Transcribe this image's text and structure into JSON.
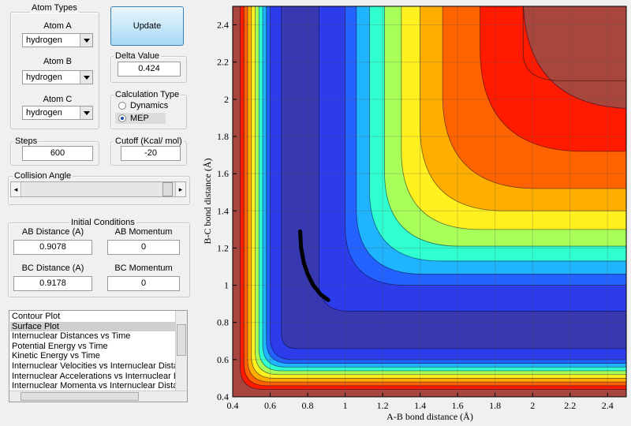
{
  "panels": {
    "atom_types": {
      "title": "Atom Types",
      "atoms": [
        {
          "label": "Atom A",
          "value": "hydrogen"
        },
        {
          "label": "Atom B",
          "value": "hydrogen"
        },
        {
          "label": "Atom C",
          "value": "hydrogen"
        }
      ]
    },
    "update_button": "Update",
    "delta_value": {
      "title": "Delta Value",
      "value": "0.424"
    },
    "calculation_type": {
      "title": "Calculation Type",
      "options": [
        "Dynamics",
        "MEP"
      ],
      "selected_index": 1
    },
    "steps": {
      "title": "Steps",
      "value": "600"
    },
    "cutoff": {
      "title": "Cutoff (Kcal/ mol)",
      "value": "-20"
    },
    "collision_angle": {
      "title": "Collision Angle"
    },
    "initial_conditions": {
      "title": "Initial Conditions",
      "fields": [
        {
          "label": "AB Distance (A)",
          "value": "0.9078"
        },
        {
          "label": "AB Momentum",
          "value": "0"
        },
        {
          "label": "BC Distance (A)",
          "value": "0.9178"
        },
        {
          "label": "BC Momentum",
          "value": "0"
        }
      ]
    },
    "plot_list": {
      "items": [
        "Contour Plot",
        "Surface Plot",
        "Internuclear Distances vs Time",
        "Potential Energy vs Time",
        "Kinetic Energy vs Time",
        "Internuclear Velocities vs Internuclear Distance",
        "Internuclear Accelerations vs Internuclear Distance",
        "Internuclear Momenta vs Internuclear Distance"
      ],
      "selected_index": 1
    }
  },
  "chart_data": {
    "type": "line",
    "xlabel": "A-B bond distance (Å)",
    "ylabel": "B-C bond distance (Å)",
    "xlim": [
      0.4,
      2.5
    ],
    "ylim": [
      0.4,
      2.5
    ],
    "xticks": [
      0.4,
      0.6,
      0.8,
      1,
      1.2,
      1.4,
      1.6,
      1.8,
      2,
      2.2,
      2.4
    ],
    "yticks": [
      0.4,
      0.6,
      0.8,
      1,
      1.2,
      1.4,
      1.6,
      1.8,
      2,
      2.2,
      2.4
    ],
    "grid": true,
    "series": [
      {
        "color": "#000000",
        "x": [
          0.76,
          0.765,
          0.78,
          0.8,
          0.83,
          0.87,
          0.91
        ],
        "y": [
          1.29,
          1.2,
          1.12,
          1.06,
          1.0,
          0.95,
          0.92
        ]
      }
    ]
  }
}
